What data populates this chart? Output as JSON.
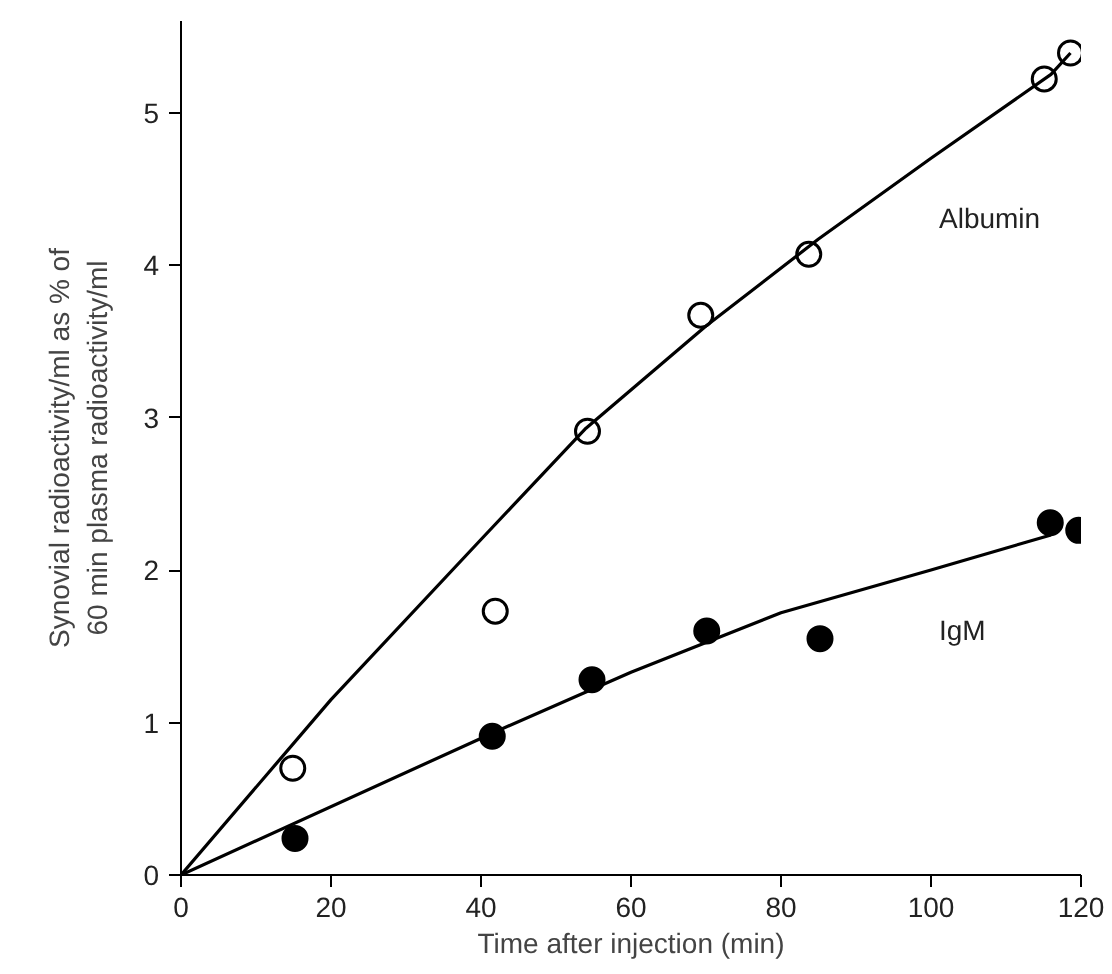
{
  "chart_data": {
    "type": "scatter",
    "xlabel": "Time after injection (min)",
    "ylabel": "Synovial radioactivity/ml as % of\n60 min plasma radioactivity/ml",
    "xlim": [
      0,
      120
    ],
    "ylim": [
      0,
      5.6
    ],
    "xticks": [
      0,
      20,
      40,
      60,
      80,
      100,
      120
    ],
    "yticks": [
      0,
      1,
      2,
      3,
      4,
      5
    ],
    "grid": false,
    "series": [
      {
        "marker": "circle_open",
        "color": "#000000",
        "x": [
          14.9,
          41.9,
          54.2,
          69.3,
          83.7,
          115.1,
          118.6
        ],
        "values": [
          0.7,
          1.73,
          2.91,
          3.67,
          4.07,
          5.22,
          5.39
        ]
      },
      {
        "marker": "circle",
        "color": "#000000",
        "x": [
          15.2,
          41.5,
          54.8,
          70.1,
          85.2,
          115.9,
          119.7
        ],
        "values": [
          0.24,
          0.91,
          1.28,
          1.6,
          1.55,
          2.31,
          2.26
        ]
      },
      {
        "type": "line",
        "name": "Albumin",
        "marker": "none",
        "color": "#000000",
        "x": [
          0,
          20,
          40,
          54,
          70,
          85,
          100,
          116,
          118.6
        ],
        "values": [
          0,
          1.15,
          2.2,
          2.93,
          3.6,
          4.17,
          4.7,
          5.25,
          5.39
        ]
      },
      {
        "type": "line",
        "name": "IgM",
        "marker": "none",
        "color": "#000000",
        "x": [
          0,
          41.5,
          60,
          80,
          100,
          116
        ],
        "values": [
          0,
          0.93,
          1.33,
          1.72,
          2.0,
          2.23
        ]
      }
    ]
  }
}
